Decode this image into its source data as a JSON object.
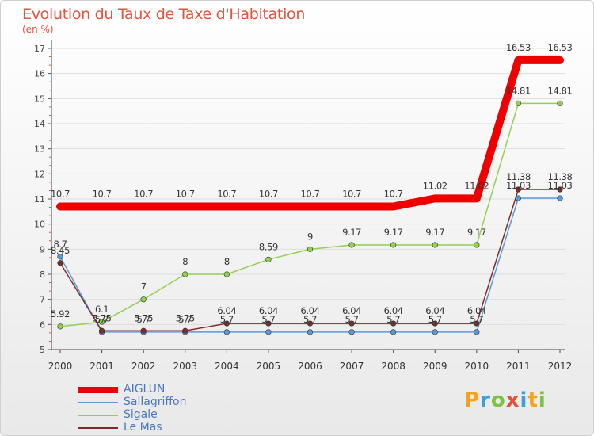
{
  "title": "Evolution du Taux de Taxe d'Habitation",
  "subtitle": "(en %)",
  "chart_data": {
    "type": "line",
    "title": "Evolution du Taux de Taxe d'Habitation",
    "ylabel": "(en %)",
    "xlabel": "",
    "x": [
      "2000",
      "2001",
      "2002",
      "2003",
      "2004",
      "2005",
      "2006",
      "2007",
      "2008",
      "2009",
      "2010",
      "2011",
      "2012"
    ],
    "ylim": [
      5,
      17
    ],
    "yticks": [
      "5",
      "6",
      "7",
      "8",
      "9",
      "10",
      "11",
      "12",
      "13",
      "14",
      "15",
      "16",
      "17"
    ],
    "series": [
      {
        "name": "AIGLUN",
        "color": "#ee0000",
        "values": [
          10.7,
          10.7,
          10.7,
          10.7,
          10.7,
          10.7,
          10.7,
          10.7,
          10.7,
          11.02,
          11.02,
          16.53,
          16.53
        ],
        "labels": [
          "10.7",
          "10.7",
          "10.7",
          "10.7",
          "10.7",
          "10.7",
          "10.7",
          "10.7",
          "10.7",
          "11.02",
          "11.02",
          "16.53",
          "16.53"
        ]
      },
      {
        "name": "Sallagriffon",
        "color": "#5b9bd5",
        "values": [
          8.7,
          5.7,
          5.7,
          5.7,
          5.7,
          5.7,
          5.7,
          5.7,
          5.7,
          5.7,
          5.7,
          11.03,
          11.03
        ],
        "labels": [
          "8.7",
          "5.7",
          "5.7",
          "5.7",
          "5.7",
          "5.7",
          "5.7",
          "5.7",
          "5.7",
          "5.7",
          "5.7",
          "11.03",
          "11.03"
        ]
      },
      {
        "name": "Sigale",
        "color": "#92d050",
        "values": [
          5.92,
          6.1,
          7,
          8,
          8,
          8.59,
          9,
          9.17,
          9.17,
          9.17,
          9.17,
          14.81,
          14.81
        ],
        "labels": [
          "5.92",
          "6.1",
          "7",
          "8",
          "8",
          "8.59",
          "9",
          "9.17",
          "9.17",
          "9.17",
          "9.17",
          "14.81",
          "14.81"
        ]
      },
      {
        "name": "Le Mas",
        "color": "#7b2c2c",
        "values": [
          8.45,
          5.75,
          5.75,
          5.75,
          6.04,
          6.04,
          6.04,
          6.04,
          6.04,
          6.04,
          6.04,
          11.38,
          11.38
        ],
        "labels": [
          "8.45",
          "5.75",
          "5.75",
          "5.75",
          "6.04",
          "6.04",
          "6.04",
          "6.04",
          "6.04",
          "6.04",
          "6.04",
          "11.38",
          "11.38"
        ]
      }
    ]
  },
  "legend": {
    "items": [
      {
        "label": "AIGLUN",
        "color": "#ee0000"
      },
      {
        "label": "Sallagriffon",
        "color": "#5b9bd5"
      },
      {
        "label": "Sigale",
        "color": "#92d050"
      },
      {
        "label": "Le Mas",
        "color": "#7b2c2c"
      }
    ]
  },
  "logo": {
    "text": "Proxiti"
  }
}
